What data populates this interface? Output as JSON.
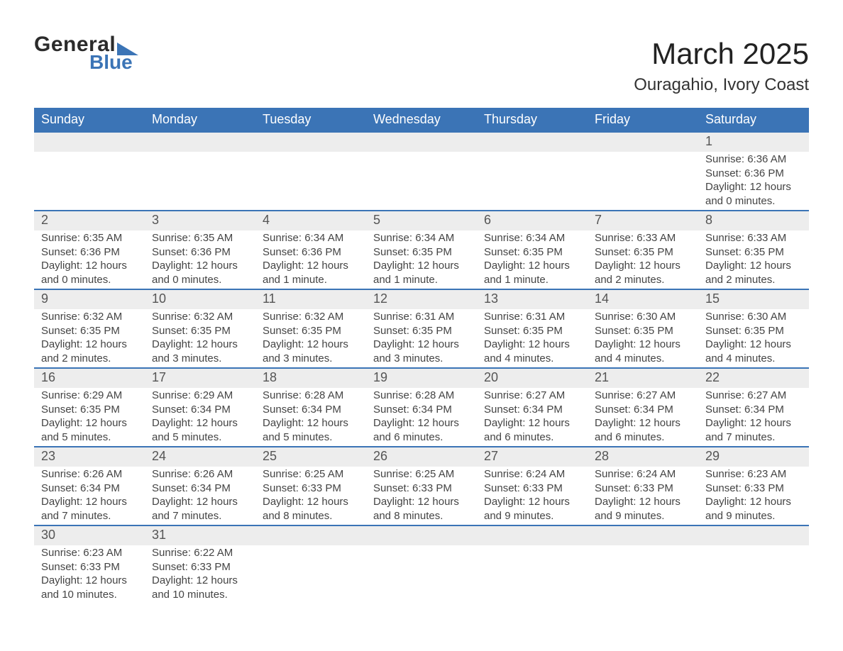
{
  "brand": {
    "name1": "General",
    "name2": "Blue",
    "tri_color": "#3b74b6",
    "text_dark": "#2b2b2b"
  },
  "title": "March 2025",
  "location": "Ouragahio, Ivory Coast",
  "colors": {
    "header_bg": "#3b74b6",
    "header_text": "#ffffff",
    "daynum_bg": "#ededed",
    "daynum_text": "#555555",
    "body_text": "#444444",
    "row_divider": "#3b74b6",
    "page_bg": "#ffffff"
  },
  "typography": {
    "title_fontsize": 42,
    "location_fontsize": 24,
    "dow_fontsize": 18,
    "daynum_fontsize": 18,
    "body_fontsize": 15
  },
  "days_of_week": [
    "Sunday",
    "Monday",
    "Tuesday",
    "Wednesday",
    "Thursday",
    "Friday",
    "Saturday"
  ],
  "weeks": [
    [
      null,
      null,
      null,
      null,
      null,
      null,
      {
        "n": "1",
        "sunrise": "6:36 AM",
        "sunset": "6:36 PM",
        "daylight": "12 hours and 0 minutes."
      }
    ],
    [
      {
        "n": "2",
        "sunrise": "6:35 AM",
        "sunset": "6:36 PM",
        "daylight": "12 hours and 0 minutes."
      },
      {
        "n": "3",
        "sunrise": "6:35 AM",
        "sunset": "6:36 PM",
        "daylight": "12 hours and 0 minutes."
      },
      {
        "n": "4",
        "sunrise": "6:34 AM",
        "sunset": "6:36 PM",
        "daylight": "12 hours and 1 minute."
      },
      {
        "n": "5",
        "sunrise": "6:34 AM",
        "sunset": "6:35 PM",
        "daylight": "12 hours and 1 minute."
      },
      {
        "n": "6",
        "sunrise": "6:34 AM",
        "sunset": "6:35 PM",
        "daylight": "12 hours and 1 minute."
      },
      {
        "n": "7",
        "sunrise": "6:33 AM",
        "sunset": "6:35 PM",
        "daylight": "12 hours and 2 minutes."
      },
      {
        "n": "8",
        "sunrise": "6:33 AM",
        "sunset": "6:35 PM",
        "daylight": "12 hours and 2 minutes."
      }
    ],
    [
      {
        "n": "9",
        "sunrise": "6:32 AM",
        "sunset": "6:35 PM",
        "daylight": "12 hours and 2 minutes."
      },
      {
        "n": "10",
        "sunrise": "6:32 AM",
        "sunset": "6:35 PM",
        "daylight": "12 hours and 3 minutes."
      },
      {
        "n": "11",
        "sunrise": "6:32 AM",
        "sunset": "6:35 PM",
        "daylight": "12 hours and 3 minutes."
      },
      {
        "n": "12",
        "sunrise": "6:31 AM",
        "sunset": "6:35 PM",
        "daylight": "12 hours and 3 minutes."
      },
      {
        "n": "13",
        "sunrise": "6:31 AM",
        "sunset": "6:35 PM",
        "daylight": "12 hours and 4 minutes."
      },
      {
        "n": "14",
        "sunrise": "6:30 AM",
        "sunset": "6:35 PM",
        "daylight": "12 hours and 4 minutes."
      },
      {
        "n": "15",
        "sunrise": "6:30 AM",
        "sunset": "6:35 PM",
        "daylight": "12 hours and 4 minutes."
      }
    ],
    [
      {
        "n": "16",
        "sunrise": "6:29 AM",
        "sunset": "6:35 PM",
        "daylight": "12 hours and 5 minutes."
      },
      {
        "n": "17",
        "sunrise": "6:29 AM",
        "sunset": "6:34 PM",
        "daylight": "12 hours and 5 minutes."
      },
      {
        "n": "18",
        "sunrise": "6:28 AM",
        "sunset": "6:34 PM",
        "daylight": "12 hours and 5 minutes."
      },
      {
        "n": "19",
        "sunrise": "6:28 AM",
        "sunset": "6:34 PM",
        "daylight": "12 hours and 6 minutes."
      },
      {
        "n": "20",
        "sunrise": "6:27 AM",
        "sunset": "6:34 PM",
        "daylight": "12 hours and 6 minutes."
      },
      {
        "n": "21",
        "sunrise": "6:27 AM",
        "sunset": "6:34 PM",
        "daylight": "12 hours and 6 minutes."
      },
      {
        "n": "22",
        "sunrise": "6:27 AM",
        "sunset": "6:34 PM",
        "daylight": "12 hours and 7 minutes."
      }
    ],
    [
      {
        "n": "23",
        "sunrise": "6:26 AM",
        "sunset": "6:34 PM",
        "daylight": "12 hours and 7 minutes."
      },
      {
        "n": "24",
        "sunrise": "6:26 AM",
        "sunset": "6:34 PM",
        "daylight": "12 hours and 7 minutes."
      },
      {
        "n": "25",
        "sunrise": "6:25 AM",
        "sunset": "6:33 PM",
        "daylight": "12 hours and 8 minutes."
      },
      {
        "n": "26",
        "sunrise": "6:25 AM",
        "sunset": "6:33 PM",
        "daylight": "12 hours and 8 minutes."
      },
      {
        "n": "27",
        "sunrise": "6:24 AM",
        "sunset": "6:33 PM",
        "daylight": "12 hours and 9 minutes."
      },
      {
        "n": "28",
        "sunrise": "6:24 AM",
        "sunset": "6:33 PM",
        "daylight": "12 hours and 9 minutes."
      },
      {
        "n": "29",
        "sunrise": "6:23 AM",
        "sunset": "6:33 PM",
        "daylight": "12 hours and 9 minutes."
      }
    ],
    [
      {
        "n": "30",
        "sunrise": "6:23 AM",
        "sunset": "6:33 PM",
        "daylight": "12 hours and 10 minutes."
      },
      {
        "n": "31",
        "sunrise": "6:22 AM",
        "sunset": "6:33 PM",
        "daylight": "12 hours and 10 minutes."
      },
      null,
      null,
      null,
      null,
      null
    ]
  ],
  "cell_labels": {
    "sunrise": "Sunrise: ",
    "sunset": "Sunset: ",
    "daylight": "Daylight: "
  }
}
